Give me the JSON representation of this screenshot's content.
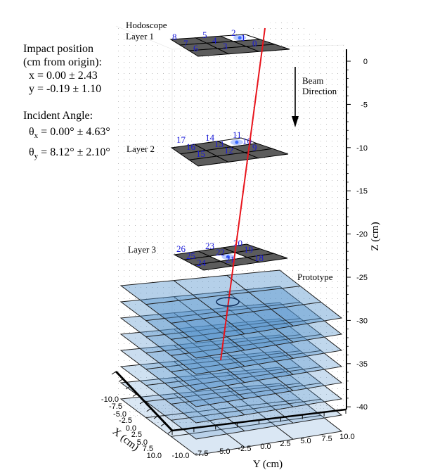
{
  "info": {
    "impact_title": "Impact position",
    "impact_subtitle": "(cm from origin):",
    "x_line": "x = 0.00 ± 2.43",
    "y_line": "y = -0.19 ± 1.10",
    "angle_title": "Incident Angle:",
    "theta_symbol": "θ",
    "theta_x_sub": "x",
    "theta_x_value": " = 0.00° ± 4.63°",
    "theta_y_sub": "y",
    "theta_y_value": " = 8.12° ± 2.10°"
  },
  "labels": {
    "hodoscope": "Hodoscope",
    "layer1": "Layer 1",
    "layer2": "Layer 2",
    "layer3": "Layer 3",
    "prototype": "Prototype",
    "beam_line1": "Beam",
    "beam_line2": "Direction"
  },
  "layer1_ids": [
    "8",
    "7",
    "6",
    "5",
    "4",
    "3",
    "2",
    "1",
    "0"
  ],
  "layer2_ids": [
    "17",
    "16",
    "15",
    "14",
    "13",
    "12",
    "11",
    "10",
    "9"
  ],
  "layer3_ids": [
    "26",
    "25",
    "24",
    "23",
    "22",
    "21",
    "20",
    "19",
    "18"
  ],
  "axes": {
    "z_label": "Z (cm)",
    "z_ticks": [
      "0",
      "-5",
      "-10",
      "-15",
      "-20",
      "-25",
      "-30",
      "-35",
      "-40"
    ],
    "y_label": "Y (cm)",
    "y_ticks": [
      "-10.0",
      "-7.5",
      "-5.0",
      "-2.5",
      "0.0",
      "2.5",
      "5.0",
      "7.5",
      "10.0"
    ],
    "x_label": "X (cm)",
    "x_ticks": [
      "-10.0",
      "-7.5",
      "-5.0",
      "-2.5",
      "0.0",
      "2.5",
      "5.0",
      "7.5",
      "10.0"
    ]
  },
  "colors": {
    "track": "#e8141c",
    "tile_dark": "#5c5c5c",
    "tile_hit": "#ffffff",
    "id_text": "#1a1ad8",
    "prototype_fill": "#4f8fca",
    "hit_marker": "#3d6bff"
  }
}
